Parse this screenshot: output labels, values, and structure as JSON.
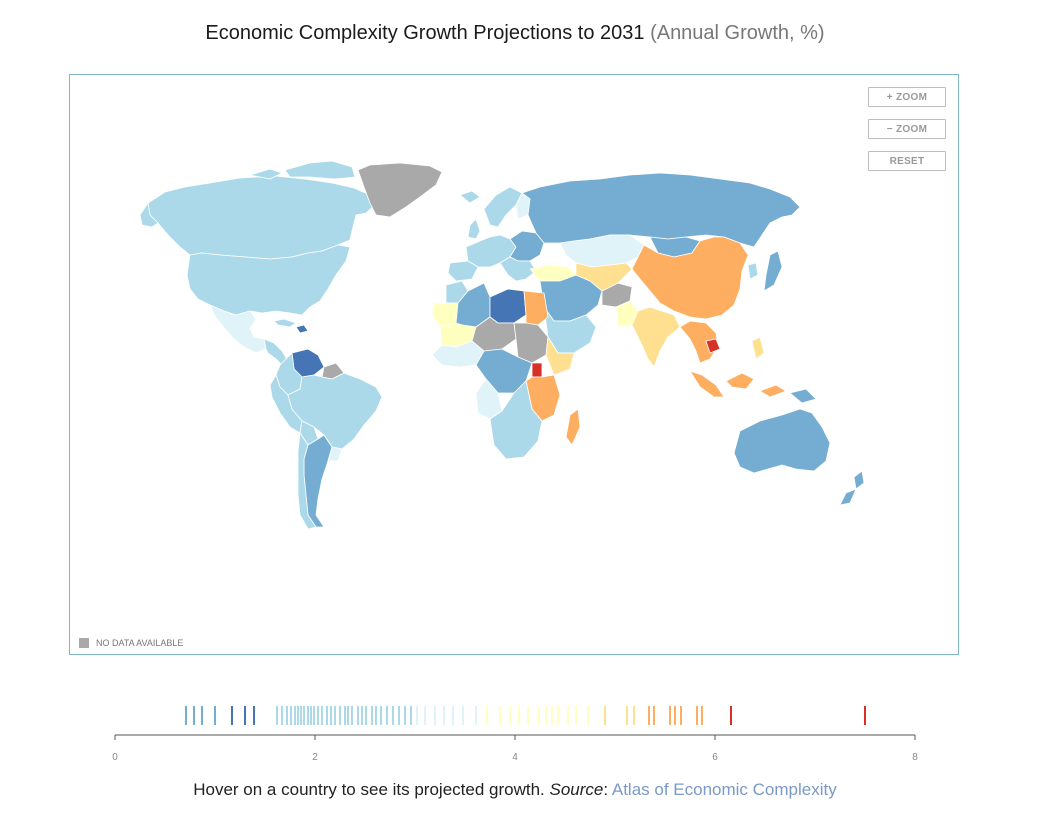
{
  "title": {
    "main": "Economic Complexity Growth Projections to 2031",
    "sub": "(Annual Growth, %)"
  },
  "controls": {
    "zoom_in": "+ ZOOM",
    "zoom_out": "− ZOOM",
    "reset": "RESET"
  },
  "map": {
    "nodata_label": "NO DATA AVAILABLE",
    "nodata_color": "#a9a9a9",
    "color_scale": [
      "#4575b4",
      "#74add1",
      "#abd9e9",
      "#e0f3f8",
      "#ffffbf",
      "#fee090",
      "#fdae61",
      "#d73027"
    ]
  },
  "chart_data": {
    "type": "strip",
    "axis": {
      "min": 0,
      "max": 8,
      "ticks": [
        "0",
        "2",
        "4",
        "6",
        "8"
      ]
    },
    "values": [
      0.71,
      0.79,
      0.87,
      1.0,
      1.17,
      1.3,
      1.39,
      1.62,
      1.67,
      1.72,
      1.76,
      1.8,
      1.83,
      1.86,
      1.89,
      1.93,
      1.96,
      1.99,
      2.03,
      2.07,
      2.12,
      2.16,
      2.2,
      2.25,
      2.3,
      2.33,
      2.37,
      2.43,
      2.47,
      2.51,
      2.57,
      2.61,
      2.66,
      2.72,
      2.78,
      2.84,
      2.9,
      2.96,
      3.02,
      3.1,
      3.2,
      3.29,
      3.38,
      3.48,
      3.61,
      3.72,
      3.85,
      3.95,
      4.04,
      4.13,
      4.24,
      4.31,
      4.37,
      4.43,
      4.53,
      4.61,
      4.73,
      4.9,
      5.12,
      5.19,
      5.34,
      5.39,
      5.55,
      5.6,
      5.66,
      5.82,
      5.87,
      6.16,
      7.5
    ]
  },
  "footer": {
    "text": "Hover on a country to see its projected growth.",
    "source_label": "Source",
    "source_link": "Atlas of Economic Complexity"
  }
}
